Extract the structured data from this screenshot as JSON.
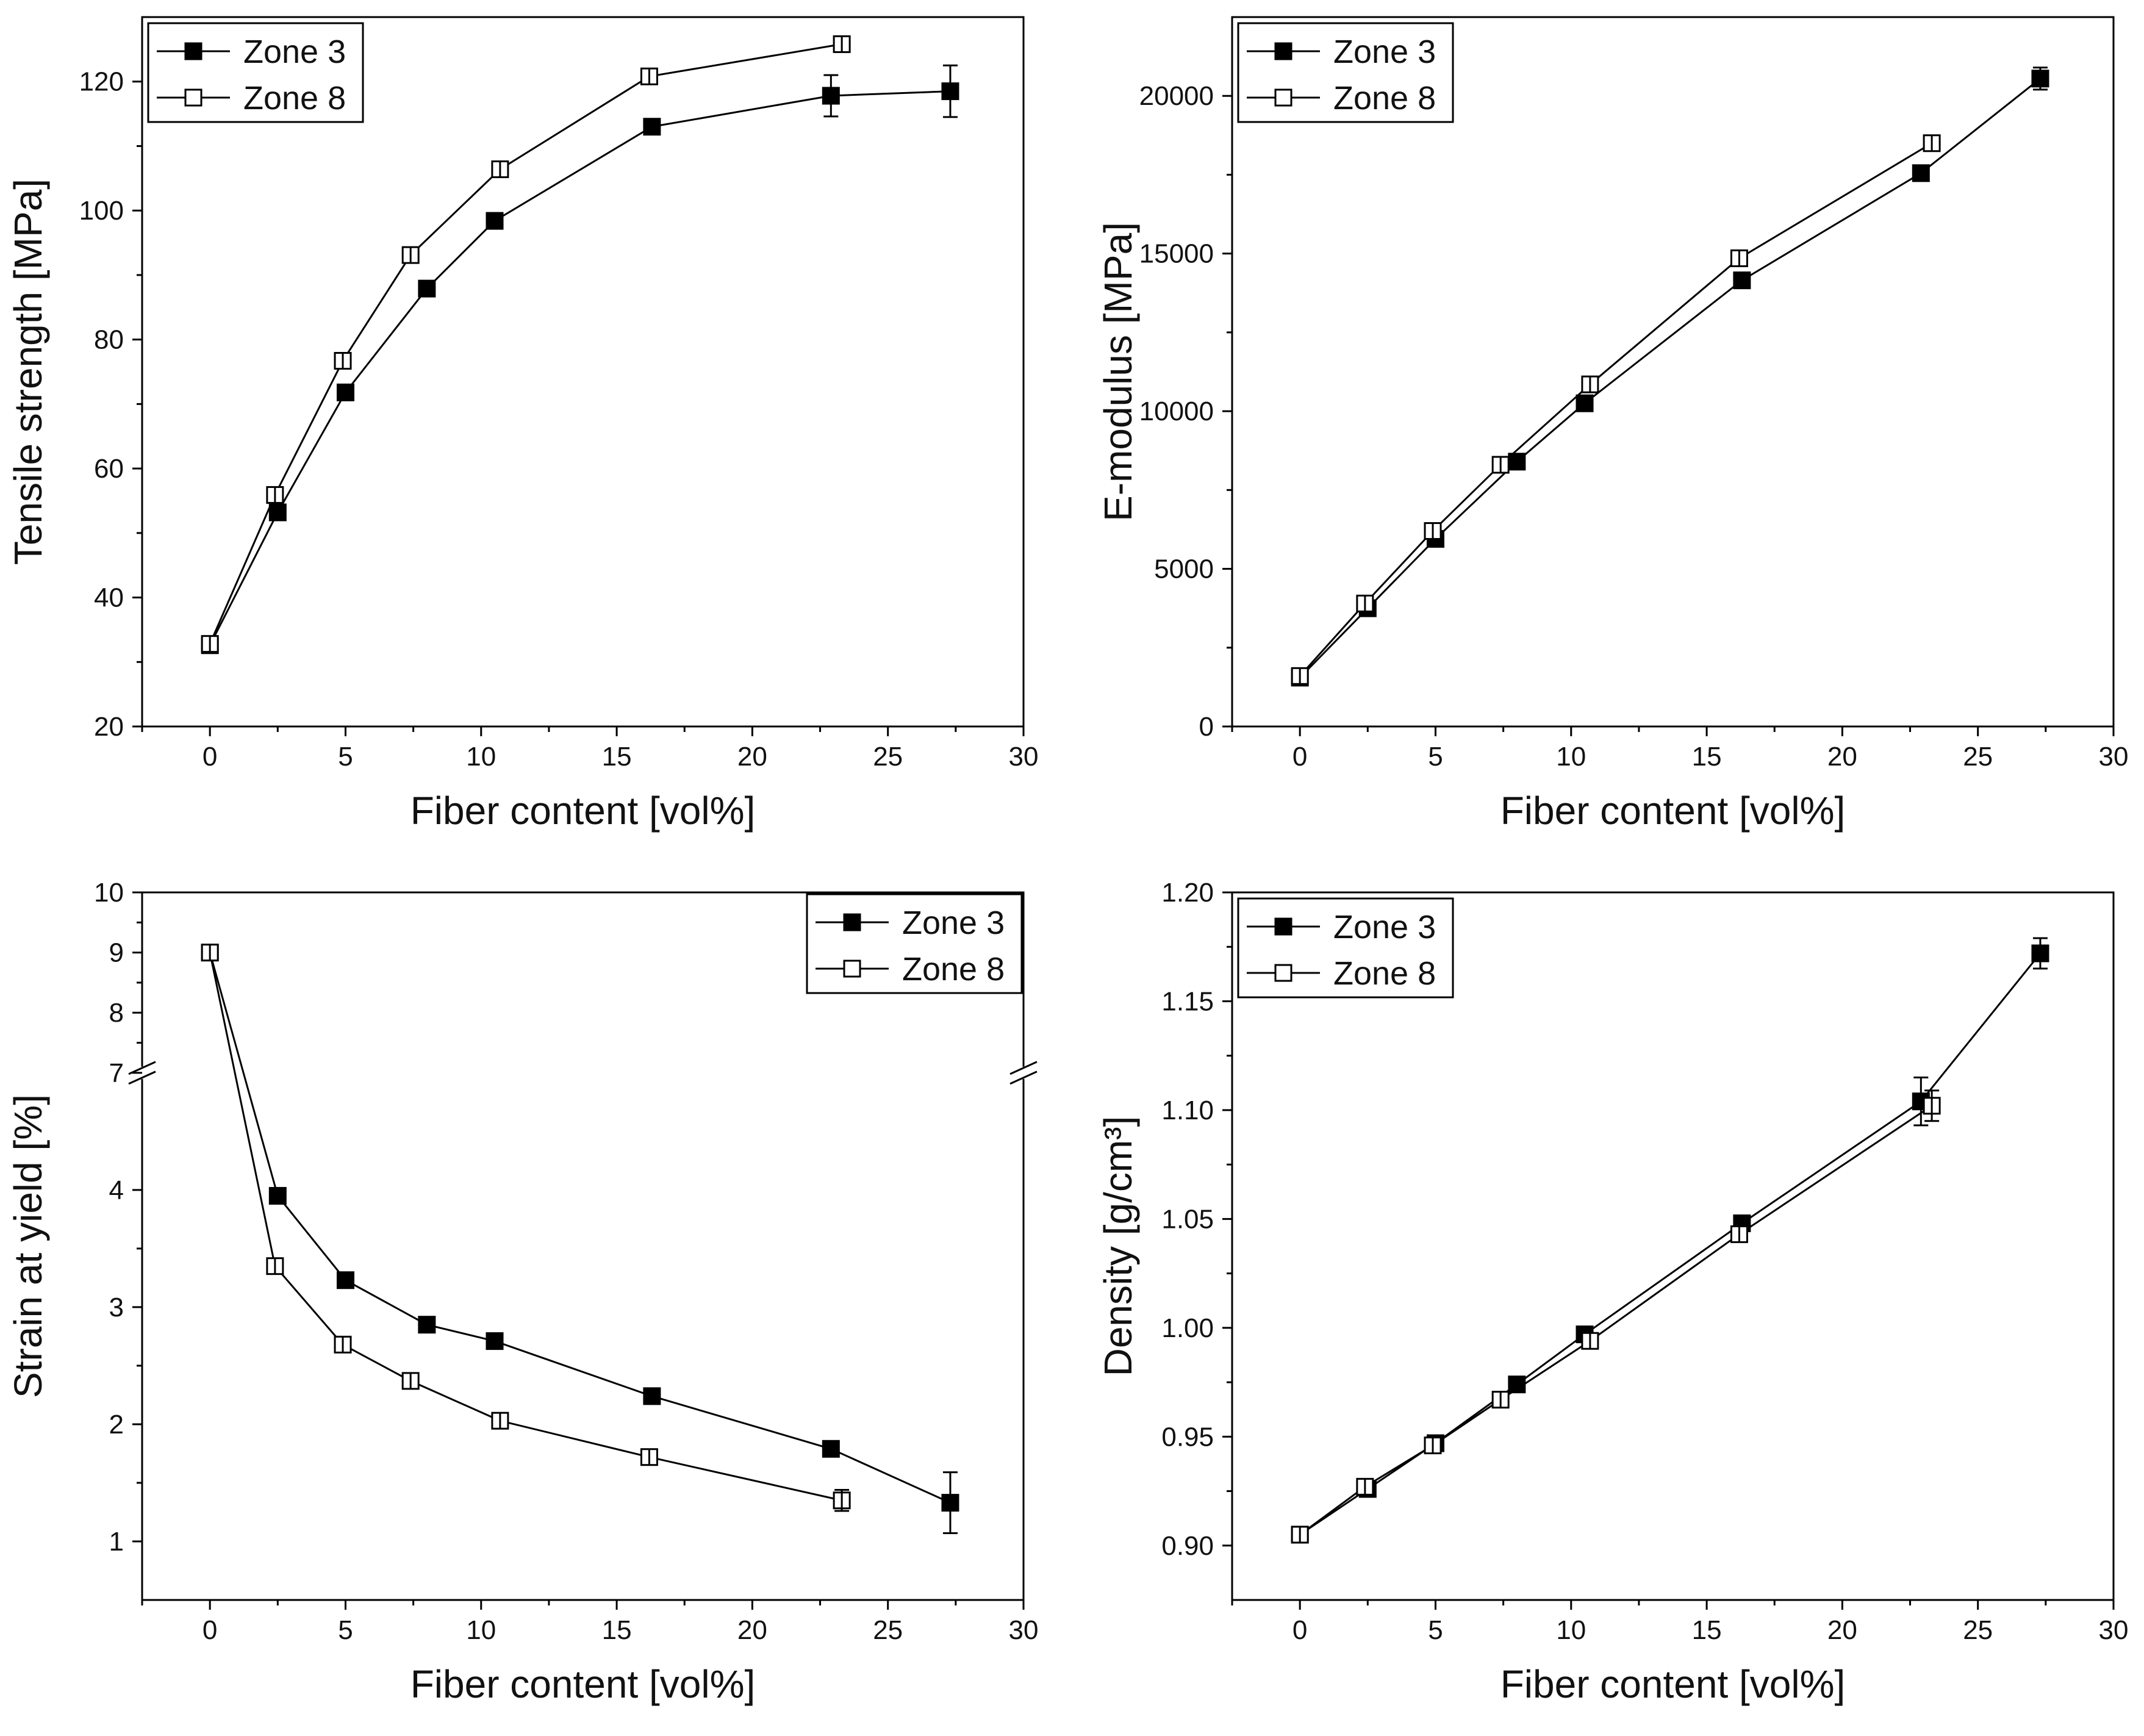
{
  "chart_data": [
    {
      "id": "p1",
      "type": "line",
      "xlabel": "Fiber content [vol%]",
      "ylabel": "Tensile strength [MPa]",
      "xlim": [
        -2.5,
        30
      ],
      "ylim": [
        20,
        130
      ],
      "xticks": [
        0,
        5,
        10,
        15,
        20,
        25,
        30
      ],
      "yticks": [
        20,
        40,
        60,
        80,
        100,
        120
      ],
      "legend_position": "top-left",
      "series": [
        {
          "name": "Zone 3",
          "marker": "filled",
          "x": [
            0,
            2.5,
            5,
            8,
            10.5,
            16.3,
            22.9,
            27.3
          ],
          "y": [
            32.6,
            53.2,
            71.8,
            87.9,
            98.4,
            113.0,
            117.8,
            118.5
          ],
          "err": [
            0.7,
            0.8,
            0.8,
            0.8,
            0.8,
            0.7,
            3.2,
            4.0
          ]
        },
        {
          "name": "Zone 8",
          "marker": "open",
          "x": [
            0,
            2.4,
            4.9,
            7.4,
            10.7,
            16.2,
            23.3
          ],
          "y": [
            32.8,
            55.9,
            76.7,
            93.1,
            106.4,
            120.8,
            125.8
          ],
          "err": [
            0.7,
            0.7,
            0.8,
            0.7,
            0.7,
            0.7,
            1.2
          ]
        }
      ]
    },
    {
      "id": "p2",
      "type": "line",
      "xlabel": "Fiber content [vol%]",
      "ylabel": "E-modulus [MPa]",
      "xlim": [
        -2.5,
        30
      ],
      "ylim": [
        0,
        22500
      ],
      "xticks": [
        0,
        5,
        10,
        15,
        20,
        25,
        30
      ],
      "yticks": [
        0,
        5000,
        10000,
        15000,
        20000
      ],
      "legend_position": "top-left",
      "series": [
        {
          "name": "Zone 3",
          "marker": "filled",
          "x": [
            0,
            2.5,
            5,
            8,
            10.5,
            16.3,
            22.9,
            27.3
          ],
          "y": [
            1550,
            3750,
            5950,
            8400,
            10250,
            14150,
            17550,
            20550
          ],
          "err": [
            120,
            120,
            120,
            120,
            120,
            120,
            150,
            350
          ]
        },
        {
          "name": "Zone 8",
          "marker": "open",
          "x": [
            0,
            2.4,
            4.9,
            7.4,
            10.7,
            16.2,
            23.3
          ],
          "y": [
            1600,
            3900,
            6200,
            8300,
            10850,
            14850,
            18500
          ],
          "err": [
            120,
            120,
            120,
            120,
            120,
            120,
            120
          ]
        }
      ]
    },
    {
      "id": "p3",
      "type": "line",
      "xlabel": "Fiber content [vol%]",
      "ylabel": "Strain at yield [%]",
      "xlim": [
        -2.5,
        30
      ],
      "ylim": [
        0.5,
        10
      ],
      "y_axis_break": {
        "lower_max": 5,
        "upper_min": 7,
        "upper_max": 10
      },
      "xticks": [
        0,
        5,
        10,
        15,
        20,
        25,
        30
      ],
      "yticks": [
        1,
        2,
        3,
        4,
        7,
        8,
        9,
        10
      ],
      "legend_position": "top-right",
      "series": [
        {
          "name": "Zone 3",
          "marker": "filled",
          "x": [
            0,
            2.5,
            5,
            8,
            10.5,
            16.3,
            22.9,
            27.3
          ],
          "y": [
            9.0,
            3.95,
            3.23,
            2.85,
            2.71,
            2.24,
            1.79,
            1.33
          ],
          "err": [
            0.03,
            0.04,
            0.04,
            0.04,
            0.04,
            0.04,
            0.05,
            0.26
          ]
        },
        {
          "name": "Zone 8",
          "marker": "open",
          "x": [
            0,
            2.4,
            4.9,
            7.4,
            10.7,
            16.2,
            23.3
          ],
          "y": [
            9.0,
            3.35,
            2.68,
            2.37,
            2.03,
            1.72,
            1.35
          ],
          "err": [
            0.03,
            0.04,
            0.04,
            0.04,
            0.04,
            0.04,
            0.09
          ]
        }
      ]
    },
    {
      "id": "p4",
      "type": "line",
      "xlabel": "Fiber content [vol%]",
      "ylabel": "Density [g/cm³]",
      "xlim": [
        -2.5,
        30
      ],
      "ylim": [
        0.875,
        1.2
      ],
      "xticks": [
        0,
        5,
        10,
        15,
        20,
        25,
        30
      ],
      "yticks": [
        0.9,
        0.95,
        1.0,
        1.05,
        1.1,
        1.15,
        1.2
      ],
      "ytick_labels": [
        "0.90",
        "0.95",
        "1.00",
        "1.05",
        "1.10",
        "1.15",
        "1.20"
      ],
      "legend_position": "top-left",
      "series": [
        {
          "name": "Zone 3",
          "marker": "filled",
          "x": [
            0,
            2.5,
            5,
            8,
            10.5,
            16.3,
            22.9,
            27.3
          ],
          "y": [
            0.905,
            0.926,
            0.947,
            0.974,
            0.997,
            1.048,
            1.104,
            1.172
          ],
          "err": [
            0.002,
            0.002,
            0.002,
            0.002,
            0.002,
            0.002,
            0.011,
            0.007
          ]
        },
        {
          "name": "Zone 8",
          "marker": "open",
          "x": [
            0,
            2.4,
            4.9,
            7.4,
            10.7,
            16.2,
            23.3
          ],
          "y": [
            0.905,
            0.927,
            0.946,
            0.967,
            0.994,
            1.043,
            1.102
          ],
          "err": [
            0.002,
            0.002,
            0.002,
            0.002,
            0.002,
            0.002,
            0.007
          ]
        }
      ]
    }
  ]
}
